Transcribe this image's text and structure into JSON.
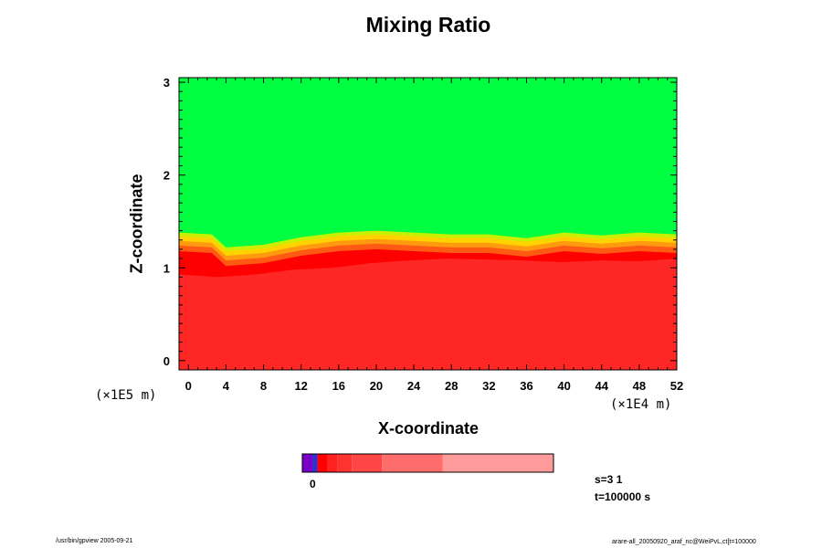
{
  "chart_data": {
    "type": "heatmap",
    "title": "Mixing Ratio",
    "xlabel": "X-coordinate",
    "ylabel": "Z-coordinate",
    "x_scale_label": "(×1E4 m)",
    "y_scale_label": "(×1E5 m)",
    "xlim": [
      -1,
      52
    ],
    "ylim": [
      -0.1,
      3.05
    ],
    "x_ticks": [
      "0",
      "4",
      "8",
      "12",
      "16",
      "20",
      "24",
      "28",
      "32",
      "36",
      "40",
      "44",
      "48",
      "52"
    ],
    "y_ticks": [
      "0",
      "1",
      "2",
      "3"
    ],
    "field": {
      "description_levels": [
        "bulk",
        "dark band",
        "orange",
        "light orange",
        "yellow",
        "yellow-green",
        "green"
      ],
      "colors": {
        "bulk": "#ff2626",
        "dark": "#ff0000",
        "orange": "#ff5a14",
        "light_orange": "#ff9a10",
        "yellow": "#ffd200",
        "yellow_green": "#c8f000",
        "green": "#00ff40"
      },
      "bulk_top_z": [
        0.93,
        0.9,
        0.93,
        0.98,
        1.0,
        1.05,
        1.08,
        1.1,
        1.09,
        1.08,
        1.06,
        1.08,
        1.07,
        1.1
      ],
      "interface_z": [
        1.38,
        1.36,
        1.22,
        1.25,
        1.33,
        1.38,
        1.4,
        1.38,
        1.36,
        1.36,
        1.32,
        1.38,
        1.35,
        1.38,
        1.36
      ],
      "interface_x": [
        -1,
        2.5,
        4,
        8,
        12,
        16,
        20,
        24,
        28,
        32,
        36,
        40,
        44,
        48,
        52
      ]
    },
    "colorbar": {
      "tick_label": "0",
      "segments": [
        {
          "color": "#7a00c8",
          "weight": 1
        },
        {
          "color": "#3030d0",
          "weight": 0.5
        },
        {
          "color": "#ff0000",
          "weight": 1
        },
        {
          "color": "#ff2020",
          "weight": 1
        },
        {
          "color": "#ff3232",
          "weight": 1.4
        },
        {
          "color": "#ff4646",
          "weight": 3
        },
        {
          "color": "#ff6c6c",
          "weight": 6
        },
        {
          "color": "#ff9b9b",
          "weight": 11
        }
      ]
    }
  },
  "info": {
    "slice": "s=3 1",
    "time": "t=100000 s"
  },
  "footer": {
    "left": "/usr/bin/gpview 2005-09-21",
    "right": "arare-all_20050920_araf_nc@WeiPvL,ct[t=100000"
  }
}
